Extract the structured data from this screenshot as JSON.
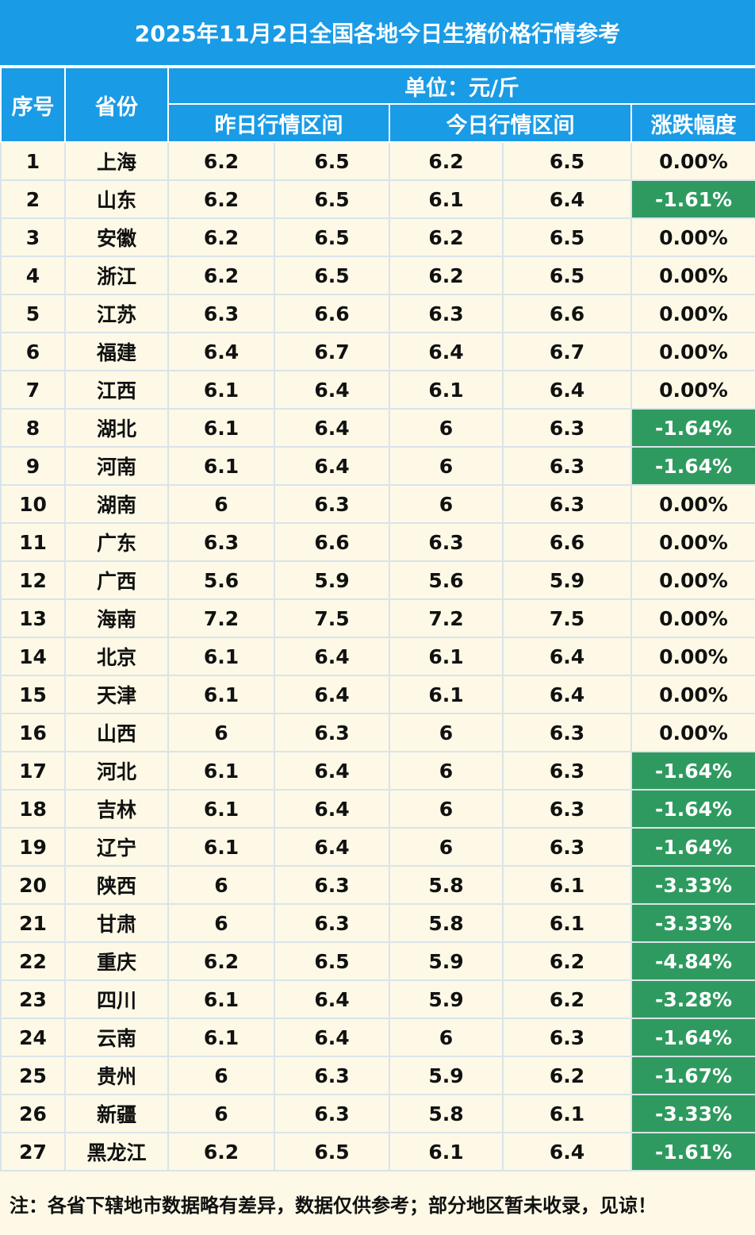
{
  "title": "2025年11月2日全国各地今日生猪价格行情参考",
  "headers": {
    "index": "序号",
    "province": "省份",
    "unit": "单位：元/斤",
    "yesterday": "昨日行情区间",
    "today": "今日行情区间",
    "change": "涨跌幅度"
  },
  "colors": {
    "header_bg": "#1a9be6",
    "body_bg": "#fdf9e6",
    "down_bg": "#2f9a5f"
  },
  "rows": [
    {
      "idx": "1",
      "province": "上海",
      "y_low": "6.2",
      "y_high": "6.5",
      "t_low": "6.2",
      "t_high": "6.5",
      "change": "0.00%",
      "down": false
    },
    {
      "idx": "2",
      "province": "山东",
      "y_low": "6.2",
      "y_high": "6.5",
      "t_low": "6.1",
      "t_high": "6.4",
      "change": "-1.61%",
      "down": true
    },
    {
      "idx": "3",
      "province": "安徽",
      "y_low": "6.2",
      "y_high": "6.5",
      "t_low": "6.2",
      "t_high": "6.5",
      "change": "0.00%",
      "down": false
    },
    {
      "idx": "4",
      "province": "浙江",
      "y_low": "6.2",
      "y_high": "6.5",
      "t_low": "6.2",
      "t_high": "6.5",
      "change": "0.00%",
      "down": false
    },
    {
      "idx": "5",
      "province": "江苏",
      "y_low": "6.3",
      "y_high": "6.6",
      "t_low": "6.3",
      "t_high": "6.6",
      "change": "0.00%",
      "down": false
    },
    {
      "idx": "6",
      "province": "福建",
      "y_low": "6.4",
      "y_high": "6.7",
      "t_low": "6.4",
      "t_high": "6.7",
      "change": "0.00%",
      "down": false
    },
    {
      "idx": "7",
      "province": "江西",
      "y_low": "6.1",
      "y_high": "6.4",
      "t_low": "6.1",
      "t_high": "6.4",
      "change": "0.00%",
      "down": false
    },
    {
      "idx": "8",
      "province": "湖北",
      "y_low": "6.1",
      "y_high": "6.4",
      "t_low": "6",
      "t_high": "6.3",
      "change": "-1.64%",
      "down": true
    },
    {
      "idx": "9",
      "province": "河南",
      "y_low": "6.1",
      "y_high": "6.4",
      "t_low": "6",
      "t_high": "6.3",
      "change": "-1.64%",
      "down": true
    },
    {
      "idx": "10",
      "province": "湖南",
      "y_low": "6",
      "y_high": "6.3",
      "t_low": "6",
      "t_high": "6.3",
      "change": "0.00%",
      "down": false
    },
    {
      "idx": "11",
      "province": "广东",
      "y_low": "6.3",
      "y_high": "6.6",
      "t_low": "6.3",
      "t_high": "6.6",
      "change": "0.00%",
      "down": false
    },
    {
      "idx": "12",
      "province": "广西",
      "y_low": "5.6",
      "y_high": "5.9",
      "t_low": "5.6",
      "t_high": "5.9",
      "change": "0.00%",
      "down": false
    },
    {
      "idx": "13",
      "province": "海南",
      "y_low": "7.2",
      "y_high": "7.5",
      "t_low": "7.2",
      "t_high": "7.5",
      "change": "0.00%",
      "down": false
    },
    {
      "idx": "14",
      "province": "北京",
      "y_low": "6.1",
      "y_high": "6.4",
      "t_low": "6.1",
      "t_high": "6.4",
      "change": "0.00%",
      "down": false
    },
    {
      "idx": "15",
      "province": "天津",
      "y_low": "6.1",
      "y_high": "6.4",
      "t_low": "6.1",
      "t_high": "6.4",
      "change": "0.00%",
      "down": false
    },
    {
      "idx": "16",
      "province": "山西",
      "y_low": "6",
      "y_high": "6.3",
      "t_low": "6",
      "t_high": "6.3",
      "change": "0.00%",
      "down": false
    },
    {
      "idx": "17",
      "province": "河北",
      "y_low": "6.1",
      "y_high": "6.4",
      "t_low": "6",
      "t_high": "6.3",
      "change": "-1.64%",
      "down": true
    },
    {
      "idx": "18",
      "province": "吉林",
      "y_low": "6.1",
      "y_high": "6.4",
      "t_low": "6",
      "t_high": "6.3",
      "change": "-1.64%",
      "down": true
    },
    {
      "idx": "19",
      "province": "辽宁",
      "y_low": "6.1",
      "y_high": "6.4",
      "t_low": "6",
      "t_high": "6.3",
      "change": "-1.64%",
      "down": true
    },
    {
      "idx": "20",
      "province": "陕西",
      "y_low": "6",
      "y_high": "6.3",
      "t_low": "5.8",
      "t_high": "6.1",
      "change": "-3.33%",
      "down": true
    },
    {
      "idx": "21",
      "province": "甘肃",
      "y_low": "6",
      "y_high": "6.3",
      "t_low": "5.8",
      "t_high": "6.1",
      "change": "-3.33%",
      "down": true
    },
    {
      "idx": "22",
      "province": "重庆",
      "y_low": "6.2",
      "y_high": "6.5",
      "t_low": "5.9",
      "t_high": "6.2",
      "change": "-4.84%",
      "down": true
    },
    {
      "idx": "23",
      "province": "四川",
      "y_low": "6.1",
      "y_high": "6.4",
      "t_low": "5.9",
      "t_high": "6.2",
      "change": "-3.28%",
      "down": true
    },
    {
      "idx": "24",
      "province": "云南",
      "y_low": "6.1",
      "y_high": "6.4",
      "t_low": "6",
      "t_high": "6.3",
      "change": "-1.64%",
      "down": true
    },
    {
      "idx": "25",
      "province": "贵州",
      "y_low": "6",
      "y_high": "6.3",
      "t_low": "5.9",
      "t_high": "6.2",
      "change": "-1.67%",
      "down": true
    },
    {
      "idx": "26",
      "province": "新疆",
      "y_low": "6",
      "y_high": "6.3",
      "t_low": "5.8",
      "t_high": "6.1",
      "change": "-3.33%",
      "down": true
    },
    {
      "idx": "27",
      "province": "黑龙江",
      "y_low": "6.2",
      "y_high": "6.5",
      "t_low": "6.1",
      "t_high": "6.4",
      "change": "-1.61%",
      "down": true
    }
  ],
  "note": "注：各省下辖地市数据略有差异，数据仅供参考；部分地区暂未收录，见谅！"
}
